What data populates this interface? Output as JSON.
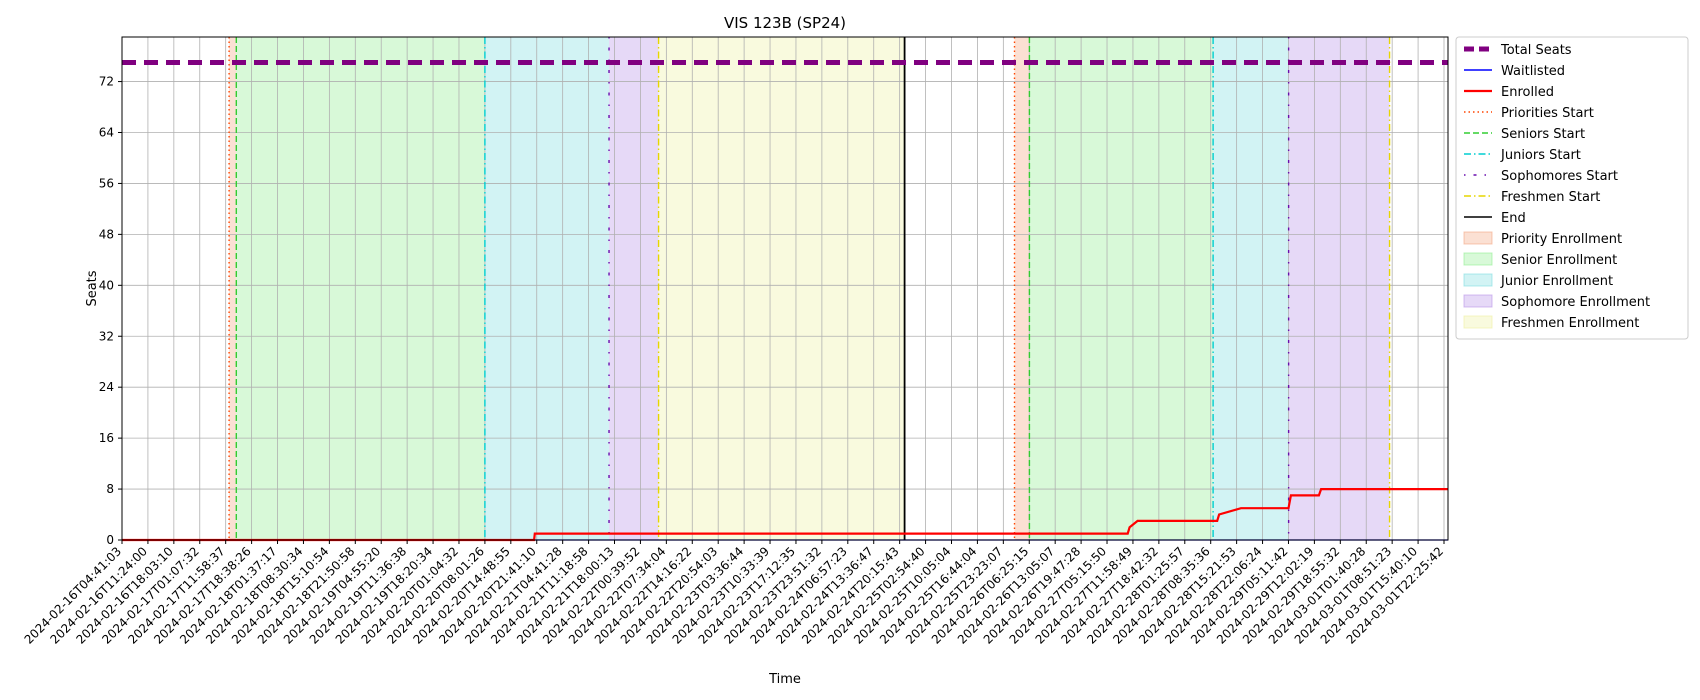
{
  "chart_data": {
    "type": "line",
    "title": "VIS 123B (SP24)",
    "xlabel": "Time",
    "ylabel": "Seats",
    "ylim": [
      0,
      79
    ],
    "yticks": [
      0,
      8,
      16,
      24,
      32,
      40,
      48,
      56,
      64,
      72
    ],
    "grid": true,
    "legend_position": "outside-top-right",
    "x_range": [
      "2024-02-16T04:41:03",
      "2024-03-02T07:40:00"
    ],
    "x_tick_labels": [
      "2024-02-16T04:41:03",
      "2024-02-16T11:24:00",
      "2024-02-16T18:03:10",
      "2024-02-17T01:07:32",
      "2024-02-17T11:58:37",
      "2024-02-17T18:38:26",
      "2024-02-18T01:37:17",
      "2024-02-18T08:30:34",
      "2024-02-18T15:10:54",
      "2024-02-18T21:50:58",
      "2024-02-19T04:55:20",
      "2024-02-19T11:36:38",
      "2024-02-19T18:20:34",
      "2024-02-20T01:04:32",
      "2024-02-20T08:01:26",
      "2024-02-20T14:48:55",
      "2024-02-20T21:41:10",
      "2024-02-21T04:41:28",
      "2024-02-21T11:18:58",
      "2024-02-21T18:00:13",
      "2024-02-22T00:39:52",
      "2024-02-22T07:34:04",
      "2024-02-22T14:16:22",
      "2024-02-22T20:54:03",
      "2024-02-23T03:36:44",
      "2024-02-23T10:33:39",
      "2024-02-23T17:12:35",
      "2024-02-23T23:51:32",
      "2024-02-24T06:57:23",
      "2024-02-24T13:36:47",
      "2024-02-24T20:15:43",
      "2024-02-25T02:54:40",
      "2024-02-25T10:05:04",
      "2024-02-25T16:44:04",
      "2024-02-25T23:23:07",
      "2024-02-26T06:25:15",
      "2024-02-26T13:05:07",
      "2024-02-26T19:47:28",
      "2024-02-27T05:15:50",
      "2024-02-27T11:58:49",
      "2024-02-27T18:42:32",
      "2024-02-28T01:25:57",
      "2024-02-28T08:35:36",
      "2024-02-28T15:21:53",
      "2024-02-28T22:06:24",
      "2024-02-29T05:11:42",
      "2024-02-29T12:02:19",
      "2024-02-29T18:55:32",
      "2024-03-01T01:40:28",
      "2024-03-01T08:51:23",
      "2024-03-01T15:40:10",
      "2024-03-01T22:25:42"
    ],
    "series": [
      {
        "name": "Total Seats",
        "color": "#800080",
        "style": "dashed-thick",
        "points": [
          [
            "2024-02-16T04:41:03",
            75
          ],
          [
            "2024-03-02T07:40:00",
            75
          ]
        ]
      },
      {
        "name": "Waitlisted",
        "color": "#0000ff",
        "style": "solid",
        "points": [
          [
            "2024-02-16T04:41:03",
            0
          ],
          [
            "2024-03-02T07:40:00",
            0
          ]
        ]
      },
      {
        "name": "Enrolled",
        "color": "#ff0000",
        "style": "solid-thick-step",
        "points": [
          [
            "2024-02-16T04:41:03",
            0
          ],
          [
            "2024-02-20T21:30:00",
            0
          ],
          [
            "2024-02-20T21:41:10",
            1
          ],
          [
            "2024-02-27T16:00:00",
            1
          ],
          [
            "2024-02-27T16:30:00",
            2
          ],
          [
            "2024-02-27T18:42:32",
            3
          ],
          [
            "2024-02-28T16:30:00",
            3
          ],
          [
            "2024-02-28T17:00:00",
            4
          ],
          [
            "2024-02-28T23:00:00",
            5
          ],
          [
            "2024-02-29T12:00:00",
            5
          ],
          [
            "2024-02-29T12:40:00",
            7
          ],
          [
            "2024-02-29T20:20:00",
            7
          ],
          [
            "2024-02-29T20:55:00",
            8
          ],
          [
            "2024-03-02T07:40:00",
            8
          ]
        ]
      }
    ],
    "markers": [
      {
        "name": "Priorities Start",
        "color": "#ff4500",
        "style": "dotted",
        "times": [
          "2024-02-17T10:00:00",
          "2024-02-26T09:00:00"
        ]
      },
      {
        "name": "Seniors Start",
        "color": "#32cd32",
        "style": "dashed",
        "times": [
          "2024-02-17T11:58:37",
          "2024-02-26T13:05:07"
        ]
      },
      {
        "name": "Juniors Start",
        "color": "#00ced1",
        "style": "dashdot",
        "times": [
          "2024-02-20T08:01:26",
          "2024-02-28T15:21:53"
        ]
      },
      {
        "name": "Sophomores Start",
        "color": "#6a0dad",
        "style": "dashdot-sparse",
        "times": [
          "2024-02-21T18:00:13",
          "2024-02-29T12:02:19"
        ]
      },
      {
        "name": "Freshmen Start",
        "color": "#e6d600",
        "style": "dashdot",
        "times": [
          "2024-02-22T07:34:04",
          "2024-03-01T15:40:10"
        ]
      },
      {
        "name": "End",
        "color": "#000000",
        "style": "solid",
        "times": [
          "2024-02-25T02:54:40"
        ]
      }
    ],
    "regions": [
      {
        "name": "Priority Enrollment",
        "color": "#f4a582",
        "ranges": [
          [
            "2024-02-17T10:00:00",
            "2024-02-17T11:58:37"
          ],
          [
            "2024-02-26T09:00:00",
            "2024-02-26T13:05:07"
          ]
        ]
      },
      {
        "name": "Senior Enrollment",
        "color": "#90ee90",
        "ranges": [
          [
            "2024-02-17T11:58:37",
            "2024-02-20T08:01:26"
          ],
          [
            "2024-02-26T13:05:07",
            "2024-02-28T15:21:53"
          ]
        ]
      },
      {
        "name": "Junior Enrollment",
        "color": "#7fdde0",
        "ranges": [
          [
            "2024-02-20T08:01:26",
            "2024-02-21T18:00:13"
          ],
          [
            "2024-02-28T15:21:53",
            "2024-02-29T12:02:19"
          ]
        ]
      },
      {
        "name": "Sophomore Enrollment",
        "color": "#b892e8",
        "ranges": [
          [
            "2024-02-21T18:00:13",
            "2024-02-22T07:34:04"
          ],
          [
            "2024-02-29T12:02:19",
            "2024-03-01T15:40:10"
          ]
        ]
      },
      {
        "name": "Freshmen Enrollment",
        "color": "#eef0a0",
        "ranges": [
          [
            "2024-02-22T07:34:04",
            "2024-02-25T02:54:40"
          ]
        ]
      }
    ]
  }
}
